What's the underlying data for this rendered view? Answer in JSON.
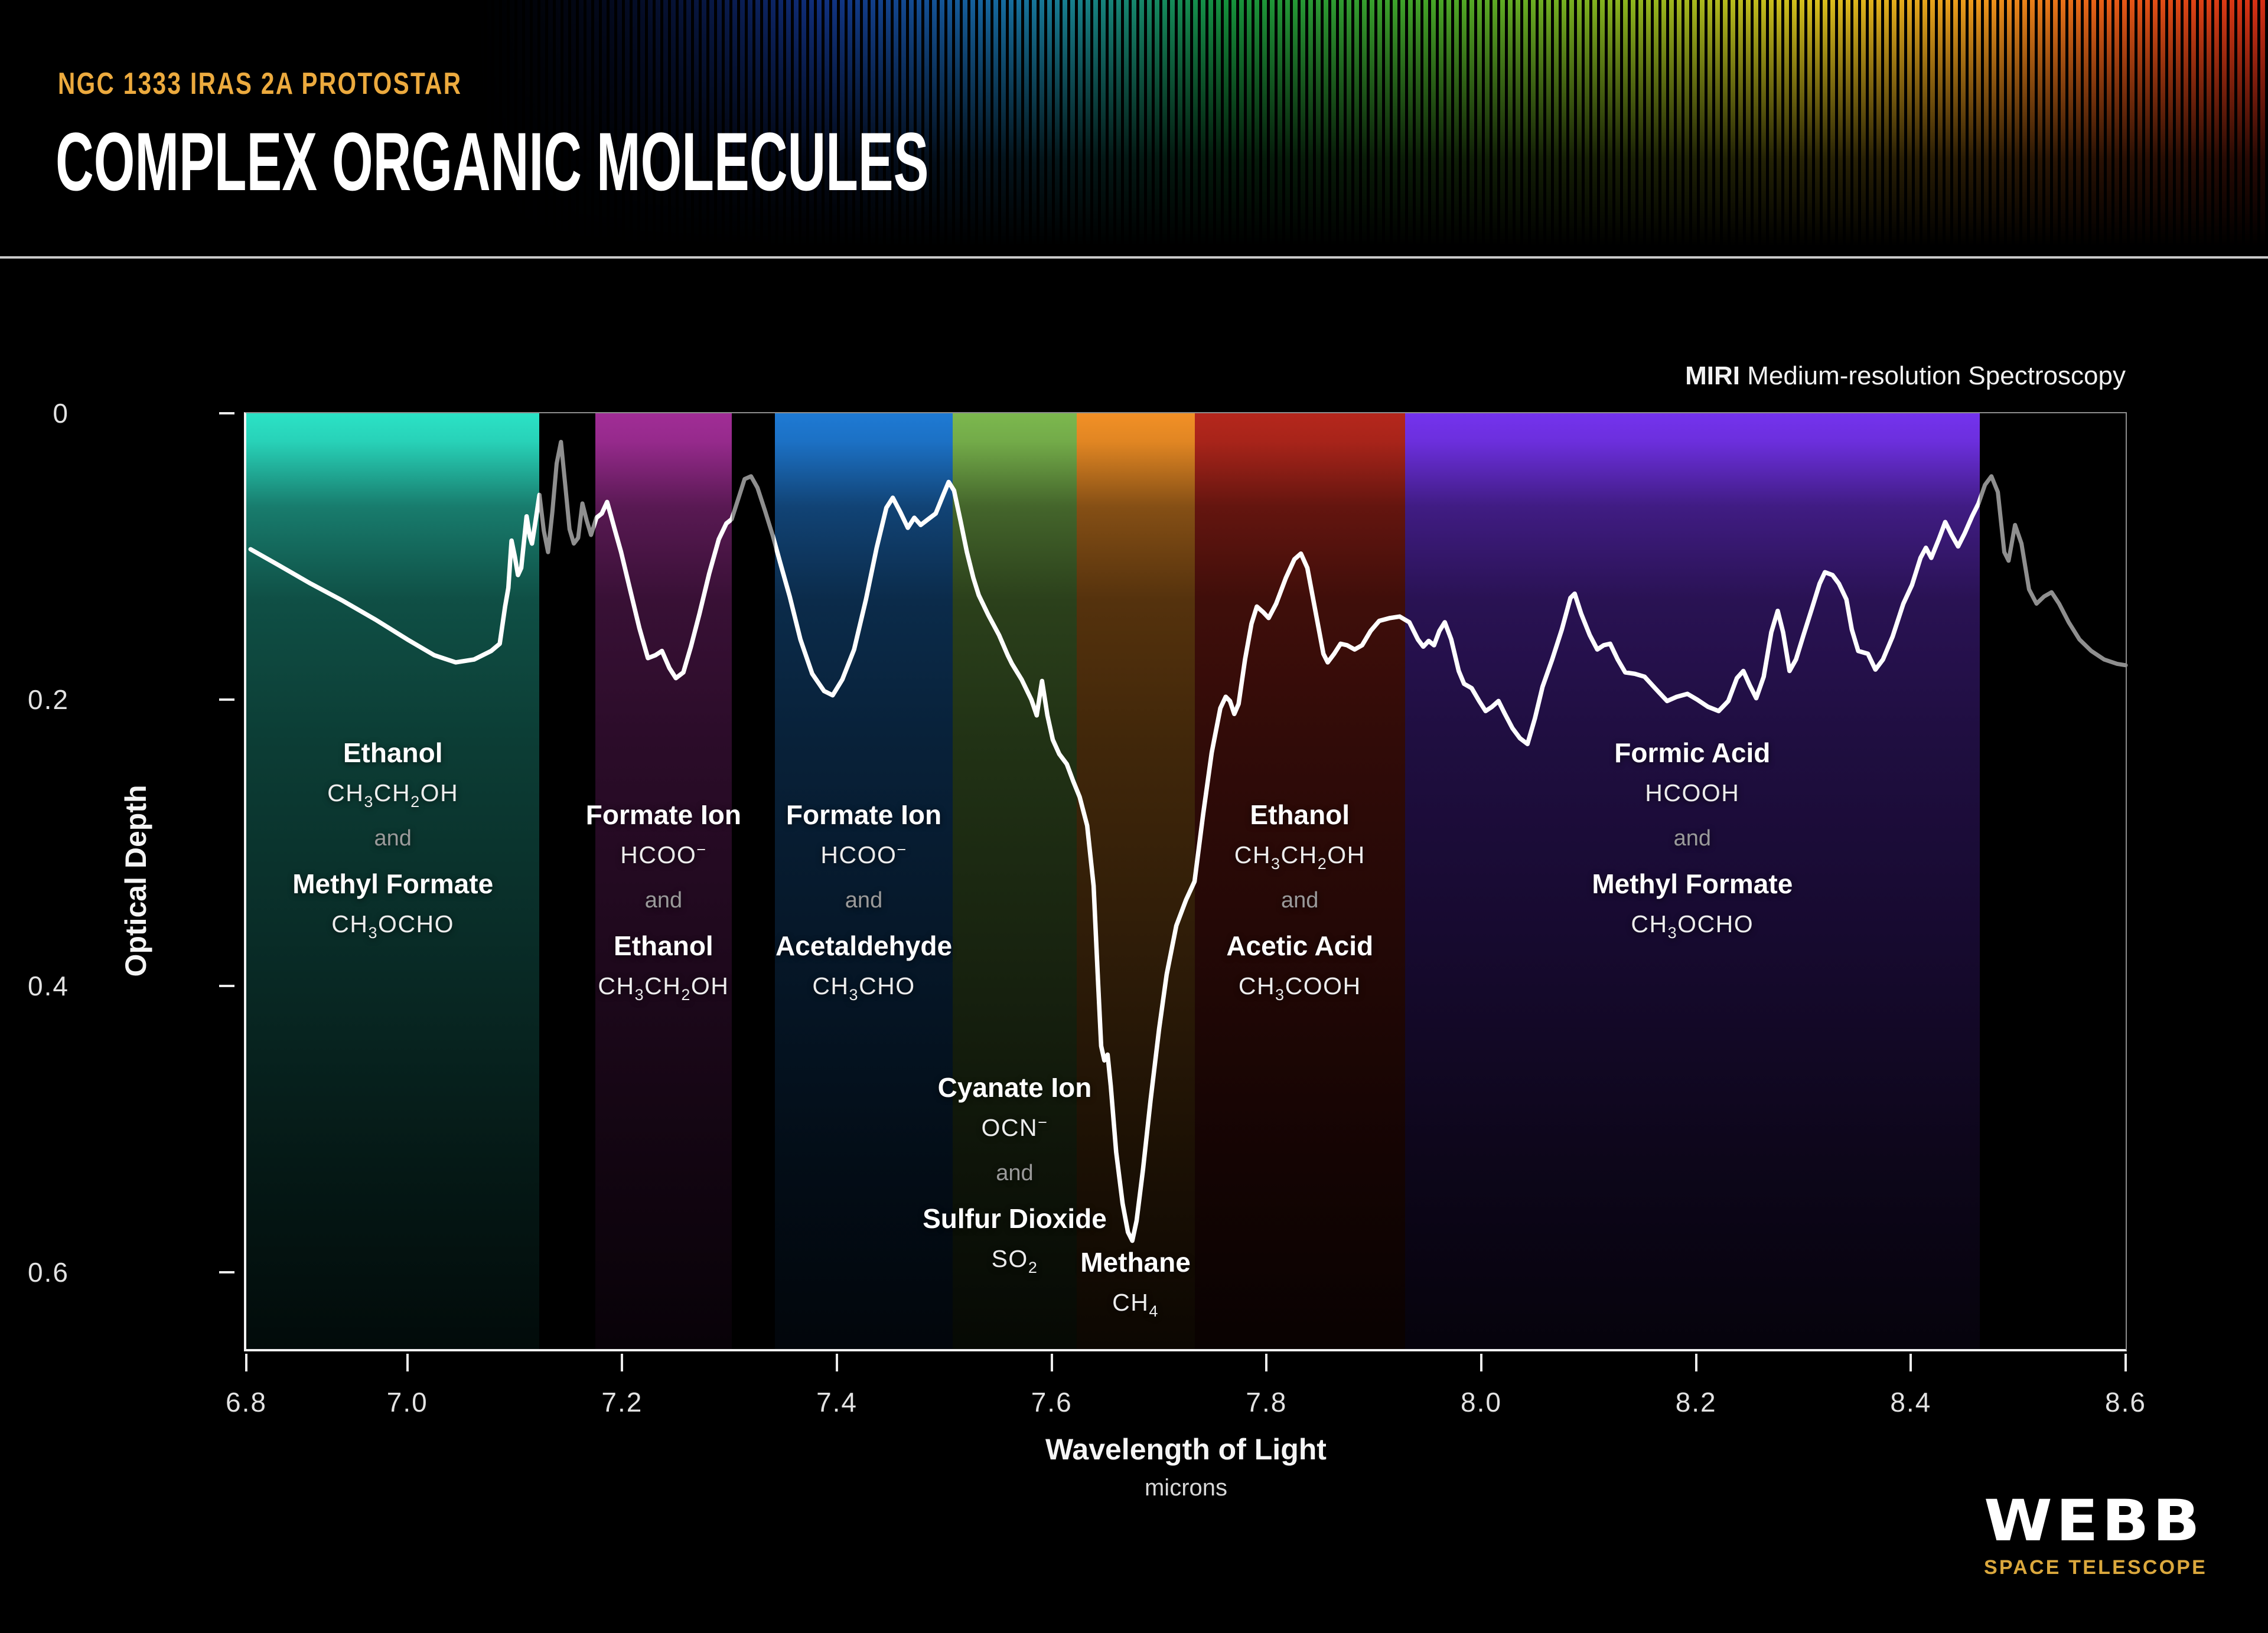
{
  "header": {
    "eyebrow": "NGC 1333 IRAS 2A PROTOSTAR",
    "title": "COMPLEX ORGANIC MOLECULES"
  },
  "chart": {
    "instrument_bold": "MIRI",
    "instrument_rest": " Medium-resolution Spectroscopy",
    "and_label": "and",
    "y_axis": {
      "label": "Optical Depth"
    },
    "x_axis": {
      "label": "Wavelength of Light",
      "sublabel": "microns"
    }
  },
  "logo": {
    "name": "WEBB",
    "tagline": "SPACE TELESCOPE"
  },
  "chart_data": {
    "type": "line",
    "xlabel": "Wavelength of Light",
    "x_unit": "microns",
    "ylabel": "Optical Depth",
    "x_range": [
      6.85,
      8.6
    ],
    "y_range": [
      0,
      0.655
    ],
    "y_inverted": true,
    "grid": false,
    "line_color": "#ffffff",
    "dim_line_color": "#8f8f8f",
    "y_ticks": [
      {
        "label": "0",
        "od": 0
      },
      {
        "label": "0.2",
        "od": 0.2
      },
      {
        "label": "0.4",
        "od": 0.4
      },
      {
        "label": "0.6",
        "od": 0.6
      }
    ],
    "x_ticks": [
      {
        "label": "6.8",
        "lambda": 6.85
      },
      {
        "label": "7.0",
        "lambda": 7.0
      },
      {
        "label": "7.2",
        "lambda": 7.2
      },
      {
        "label": "7.4",
        "lambda": 7.4
      },
      {
        "label": "7.6",
        "lambda": 7.6
      },
      {
        "label": "7.8",
        "lambda": 7.8
      },
      {
        "label": "8.0",
        "lambda": 8.0
      },
      {
        "label": "8.2",
        "lambda": 8.2
      },
      {
        "label": "8.4",
        "lambda": 8.4
      },
      {
        "label": "8.6",
        "lambda": 8.6
      }
    ],
    "bands": [
      {
        "id": "teal",
        "color": "#2be2c6",
        "from": 6.85,
        "to": 7.123,
        "label_top": 547,
        "molecules": [
          {
            "name": "Ethanol",
            "formula": "CH_3CH_2OH"
          },
          {
            "name": "Methyl Formate",
            "formula": "CH_3OCHO"
          }
        ]
      },
      {
        "id": "purple",
        "color": "#a12d96",
        "from": 7.175,
        "to": 7.302,
        "label_top": 652,
        "molecules": [
          {
            "name": "Formate Ion",
            "formula": "HCOO^-"
          },
          {
            "name": "Ethanol",
            "formula": "CH_3CH_2OH"
          }
        ]
      },
      {
        "id": "blue",
        "color": "#1e7ad4",
        "from": 7.342,
        "to": 7.508,
        "label_top": 652,
        "molecules": [
          {
            "name": "Formate Ion",
            "formula": "HCOO^-"
          },
          {
            "name": "Acetaldehyde",
            "formula": "CH_3CHO"
          }
        ]
      },
      {
        "id": "green",
        "color": "#7cb84e",
        "from": 7.508,
        "to": 7.623,
        "label_top": 1114,
        "molecules": [
          {
            "name": "Cyanate Ion",
            "formula": "OCN^-"
          },
          {
            "name": "Sulfur Dioxide",
            "formula": "SO_2"
          }
        ]
      },
      {
        "id": "orange",
        "color": "#f29026",
        "from": 7.623,
        "to": 7.733,
        "label_top": 1410,
        "molecules": [
          {
            "name": "Methane",
            "formula": "CH_4"
          }
        ]
      },
      {
        "id": "red",
        "color": "#b5271c",
        "from": 7.733,
        "to": 7.929,
        "label_top": 652,
        "molecules": [
          {
            "name": "Ethanol",
            "formula": "CH_3CH_2OH"
          },
          {
            "name": "Acetic Acid",
            "formula": "CH_3COOH"
          }
        ]
      },
      {
        "id": "violet",
        "color": "#7433ee",
        "from": 7.929,
        "to": 8.464,
        "label_top": 547,
        "molecules": [
          {
            "name": "Formic Acid",
            "formula": "HCOOH"
          },
          {
            "name": "Methyl Formate",
            "formula": "CH_3OCHO"
          }
        ]
      }
    ],
    "white_ranges": [
      [
        6.85,
        7.123
      ],
      [
        7.175,
        7.302
      ],
      [
        7.342,
        8.464
      ]
    ],
    "points": [
      [
        6.854,
        0.095
      ],
      [
        6.88,
        0.106
      ],
      [
        6.91,
        0.119
      ],
      [
        6.94,
        0.131
      ],
      [
        6.97,
        0.144
      ],
      [
        7.0,
        0.158
      ],
      [
        7.025,
        0.169
      ],
      [
        7.045,
        0.174
      ],
      [
        7.062,
        0.172
      ],
      [
        7.078,
        0.166
      ],
      [
        7.086,
        0.161
      ],
      [
        7.091,
        0.135
      ],
      [
        7.094,
        0.122
      ],
      [
        7.097,
        0.089
      ],
      [
        7.1,
        0.1
      ],
      [
        7.103,
        0.113
      ],
      [
        7.106,
        0.108
      ],
      [
        7.111,
        0.072
      ],
      [
        7.114,
        0.086
      ],
      [
        7.116,
        0.091
      ],
      [
        7.119,
        0.077
      ],
      [
        7.123,
        0.057
      ],
      [
        7.127,
        0.082
      ],
      [
        7.131,
        0.097
      ],
      [
        7.135,
        0.069
      ],
      [
        7.139,
        0.035
      ],
      [
        7.143,
        0.02
      ],
      [
        7.147,
        0.05
      ],
      [
        7.151,
        0.081
      ],
      [
        7.155,
        0.091
      ],
      [
        7.159,
        0.087
      ],
      [
        7.163,
        0.063
      ],
      [
        7.167,
        0.075
      ],
      [
        7.171,
        0.085
      ],
      [
        7.176,
        0.073
      ],
      [
        7.181,
        0.07
      ],
      [
        7.186,
        0.062
      ],
      [
        7.189,
        0.07
      ],
      [
        7.193,
        0.081
      ],
      [
        7.199,
        0.097
      ],
      [
        7.207,
        0.122
      ],
      [
        7.216,
        0.15
      ],
      [
        7.224,
        0.171
      ],
      [
        7.231,
        0.169
      ],
      [
        7.237,
        0.166
      ],
      [
        7.244,
        0.178
      ],
      [
        7.25,
        0.185
      ],
      [
        7.257,
        0.181
      ],
      [
        7.264,
        0.163
      ],
      [
        7.272,
        0.14
      ],
      [
        7.281,
        0.112
      ],
      [
        7.29,
        0.088
      ],
      [
        7.297,
        0.077
      ],
      [
        7.302,
        0.074
      ],
      [
        7.308,
        0.06
      ],
      [
        7.314,
        0.046
      ],
      [
        7.32,
        0.044
      ],
      [
        7.326,
        0.052
      ],
      [
        7.333,
        0.068
      ],
      [
        7.34,
        0.085
      ],
      [
        7.347,
        0.104
      ],
      [
        7.356,
        0.128
      ],
      [
        7.366,
        0.158
      ],
      [
        7.377,
        0.182
      ],
      [
        7.388,
        0.194
      ],
      [
        7.396,
        0.197
      ],
      [
        7.405,
        0.186
      ],
      [
        7.416,
        0.165
      ],
      [
        7.427,
        0.13
      ],
      [
        7.437,
        0.094
      ],
      [
        7.446,
        0.066
      ],
      [
        7.452,
        0.059
      ],
      [
        7.459,
        0.069
      ],
      [
        7.466,
        0.08
      ],
      [
        7.472,
        0.073
      ],
      [
        7.478,
        0.078
      ],
      [
        7.485,
        0.074
      ],
      [
        7.492,
        0.07
      ],
      [
        7.499,
        0.057
      ],
      [
        7.504,
        0.048
      ],
      [
        7.509,
        0.054
      ],
      [
        7.515,
        0.075
      ],
      [
        7.521,
        0.097
      ],
      [
        7.527,
        0.115
      ],
      [
        7.532,
        0.127
      ],
      [
        7.541,
        0.141
      ],
      [
        7.551,
        0.155
      ],
      [
        7.559,
        0.169
      ],
      [
        7.563,
        0.175
      ],
      [
        7.572,
        0.186
      ],
      [
        7.581,
        0.2
      ],
      [
        7.586,
        0.211
      ],
      [
        7.591,
        0.187
      ],
      [
        7.596,
        0.211
      ],
      [
        7.601,
        0.228
      ],
      [
        7.607,
        0.238
      ],
      [
        7.614,
        0.245
      ],
      [
        7.62,
        0.257
      ],
      [
        7.626,
        0.268
      ],
      [
        7.633,
        0.288
      ],
      [
        7.639,
        0.33
      ],
      [
        7.643,
        0.395
      ],
      [
        7.646,
        0.442
      ],
      [
        7.649,
        0.452
      ],
      [
        7.652,
        0.448
      ],
      [
        7.655,
        0.47
      ],
      [
        7.66,
        0.516
      ],
      [
        7.666,
        0.552
      ],
      [
        7.671,
        0.572
      ],
      [
        7.675,
        0.578
      ],
      [
        7.679,
        0.564
      ],
      [
        7.685,
        0.528
      ],
      [
        7.692,
        0.48
      ],
      [
        7.7,
        0.43
      ],
      [
        7.707,
        0.392
      ],
      [
        7.716,
        0.358
      ],
      [
        7.725,
        0.34
      ],
      [
        7.733,
        0.327
      ],
      [
        7.741,
        0.28
      ],
      [
        7.749,
        0.237
      ],
      [
        7.757,
        0.206
      ],
      [
        7.762,
        0.198
      ],
      [
        7.766,
        0.201
      ],
      [
        7.77,
        0.21
      ],
      [
        7.774,
        0.203
      ],
      [
        7.78,
        0.172
      ],
      [
        7.786,
        0.147
      ],
      [
        7.791,
        0.135
      ],
      [
        7.797,
        0.139
      ],
      [
        7.802,
        0.143
      ],
      [
        7.809,
        0.133
      ],
      [
        7.818,
        0.115
      ],
      [
        7.826,
        0.102
      ],
      [
        7.832,
        0.098
      ],
      [
        7.838,
        0.108
      ],
      [
        7.846,
        0.14
      ],
      [
        7.853,
        0.168
      ],
      [
        7.857,
        0.174
      ],
      [
        7.863,
        0.168
      ],
      [
        7.869,
        0.161
      ],
      [
        7.875,
        0.162
      ],
      [
        7.882,
        0.165
      ],
      [
        7.889,
        0.162
      ],
      [
        7.897,
        0.152
      ],
      [
        7.905,
        0.145
      ],
      [
        7.915,
        0.143
      ],
      [
        7.924,
        0.142
      ],
      [
        7.933,
        0.146
      ],
      [
        7.941,
        0.158
      ],
      [
        7.946,
        0.163
      ],
      [
        7.951,
        0.159
      ],
      [
        7.956,
        0.162
      ],
      [
        7.961,
        0.152
      ],
      [
        7.966,
        0.146
      ],
      [
        7.972,
        0.158
      ],
      [
        7.979,
        0.18
      ],
      [
        7.984,
        0.189
      ],
      [
        7.991,
        0.192
      ],
      [
        7.998,
        0.201
      ],
      [
        8.004,
        0.208
      ],
      [
        8.01,
        0.205
      ],
      [
        8.016,
        0.201
      ],
      [
        8.022,
        0.21
      ],
      [
        8.029,
        0.22
      ],
      [
        8.036,
        0.227
      ],
      [
        8.043,
        0.231
      ],
      [
        8.05,
        0.213
      ],
      [
        8.057,
        0.191
      ],
      [
        8.066,
        0.172
      ],
      [
        8.075,
        0.151
      ],
      [
        8.083,
        0.129
      ],
      [
        8.087,
        0.126
      ],
      [
        8.093,
        0.14
      ],
      [
        8.101,
        0.155
      ],
      [
        8.108,
        0.165
      ],
      [
        8.114,
        0.162
      ],
      [
        8.12,
        0.161
      ],
      [
        8.127,
        0.172
      ],
      [
        8.134,
        0.181
      ],
      [
        8.143,
        0.182
      ],
      [
        8.152,
        0.184
      ],
      [
        8.163,
        0.193
      ],
      [
        8.173,
        0.201
      ],
      [
        8.182,
        0.198
      ],
      [
        8.192,
        0.196
      ],
      [
        8.201,
        0.2
      ],
      [
        8.211,
        0.205
      ],
      [
        8.221,
        0.208
      ],
      [
        8.23,
        0.201
      ],
      [
        8.238,
        0.185
      ],
      [
        8.244,
        0.18
      ],
      [
        8.25,
        0.19
      ],
      [
        8.256,
        0.199
      ],
      [
        8.263,
        0.184
      ],
      [
        8.27,
        0.153
      ],
      [
        8.276,
        0.138
      ],
      [
        8.281,
        0.153
      ],
      [
        8.287,
        0.18
      ],
      [
        8.293,
        0.172
      ],
      [
        8.3,
        0.155
      ],
      [
        8.308,
        0.136
      ],
      [
        8.315,
        0.119
      ],
      [
        8.32,
        0.111
      ],
      [
        8.327,
        0.113
      ],
      [
        8.333,
        0.119
      ],
      [
        8.34,
        0.13
      ],
      [
        8.345,
        0.151
      ],
      [
        8.351,
        0.166
      ],
      [
        8.36,
        0.168
      ],
      [
        8.367,
        0.179
      ],
      [
        8.374,
        0.172
      ],
      [
        8.383,
        0.156
      ],
      [
        8.393,
        0.133
      ],
      [
        8.401,
        0.12
      ],
      [
        8.409,
        0.101
      ],
      [
        8.414,
        0.094
      ],
      [
        8.419,
        0.101
      ],
      [
        8.426,
        0.088
      ],
      [
        8.432,
        0.076
      ],
      [
        8.438,
        0.085
      ],
      [
        8.444,
        0.093
      ],
      [
        8.45,
        0.084
      ],
      [
        8.457,
        0.072
      ],
      [
        8.463,
        0.063
      ],
      [
        8.469,
        0.05
      ],
      [
        8.475,
        0.044
      ],
      [
        8.481,
        0.055
      ],
      [
        8.487,
        0.097
      ],
      [
        8.491,
        0.103
      ],
      [
        8.497,
        0.078
      ],
      [
        8.503,
        0.091
      ],
      [
        8.51,
        0.123
      ],
      [
        8.517,
        0.133
      ],
      [
        8.524,
        0.128
      ],
      [
        8.531,
        0.125
      ],
      [
        8.538,
        0.133
      ],
      [
        8.547,
        0.146
      ],
      [
        8.557,
        0.158
      ],
      [
        8.568,
        0.166
      ],
      [
        8.58,
        0.172
      ],
      [
        8.592,
        0.175
      ],
      [
        8.6,
        0.176
      ]
    ]
  }
}
